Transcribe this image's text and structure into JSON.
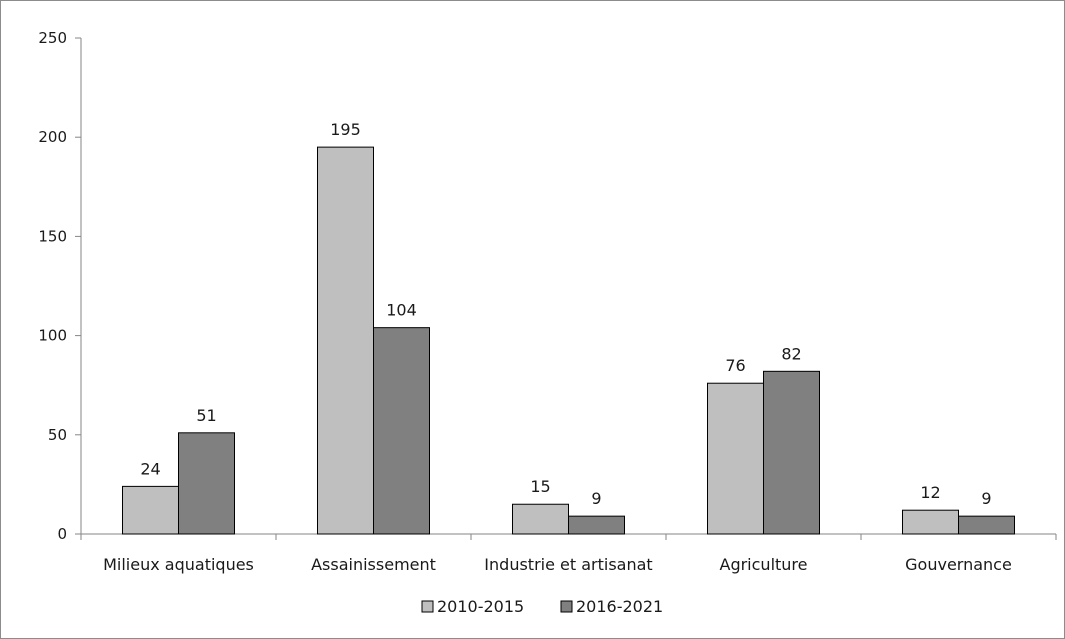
{
  "chart_data": {
    "type": "bar",
    "categories": [
      "Milieux aquatiques",
      "Assainissement",
      "Industrie et artisanat",
      "Agriculture",
      "Gouvernance"
    ],
    "series": [
      {
        "name": "2010-2015",
        "values": [
          24,
          195,
          15,
          76,
          12
        ],
        "color": "#bfbfbf"
      },
      {
        "name": "2016-2021",
        "values": [
          51,
          104,
          9,
          82,
          9
        ],
        "color": "#808080"
      }
    ],
    "ylim": [
      0,
      250
    ],
    "yticks": [
      "0",
      "50",
      "100",
      "150",
      "200",
      "250"
    ],
    "ytick_values": [
      0,
      50,
      100,
      150,
      200,
      250
    ],
    "grid": false,
    "legend_position": "bottom"
  }
}
